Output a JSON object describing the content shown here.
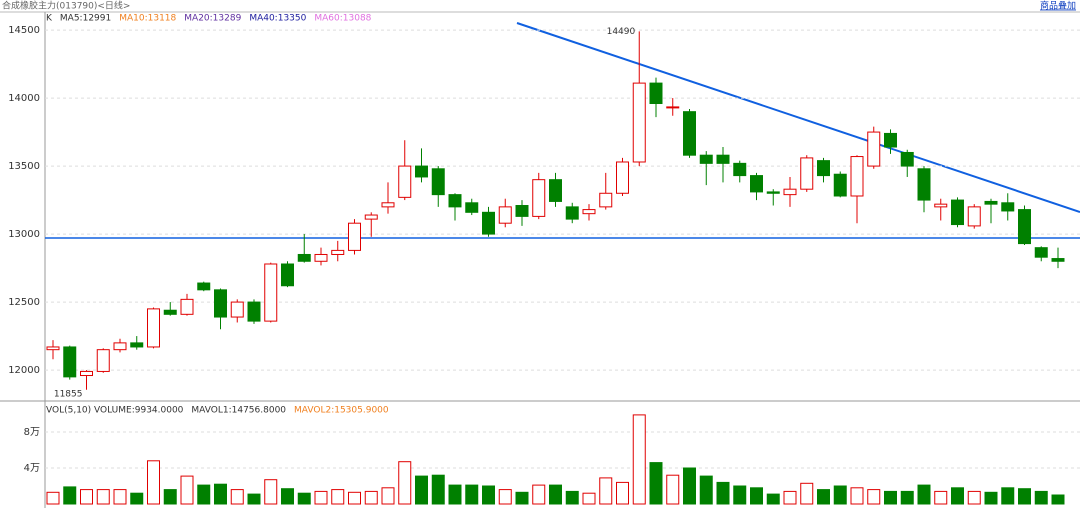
{
  "toolbar": {
    "title": "合成橡胶主力(013790)<日线>",
    "overlay_link": "商品叠加"
  },
  "chart_data": [
    {
      "type": "candlestick",
      "legend": [
        "K",
        "MA5:12991",
        "MA10:13118",
        "MA20:13289",
        "MA40:13350",
        "MA60:13088"
      ],
      "legend_colors": [
        "#333",
        "#333",
        "#f08020",
        "#6030a0",
        "#2020a0",
        "#e070e0"
      ],
      "annotations": [
        "14490",
        "11855"
      ],
      "up_color": "#e00000",
      "down_color": "#008000",
      "open": [
        12150,
        12170,
        11960,
        11990,
        12150,
        12200,
        12170,
        12440,
        12410,
        12640,
        12590,
        12390,
        12500,
        12360,
        12780,
        12850,
        12800,
        12850,
        12880,
        13110,
        13200,
        13270,
        13500,
        13480,
        13290,
        13230,
        13160,
        13080,
        13210,
        13130,
        13400,
        13200,
        13150,
        13200,
        13300,
        13530,
        14110,
        13930,
        13900,
        13580,
        13580,
        13520,
        13430,
        13310,
        13290,
        13330,
        13540,
        13440,
        13280,
        13500,
        13740,
        13600,
        13480,
        13200,
        13250,
        13060,
        13240,
        13230,
        13180,
        12900,
        12820
      ],
      "high": [
        12220,
        12180,
        12000,
        12160,
        12230,
        12250,
        12460,
        12500,
        12560,
        12650,
        12600,
        12520,
        12520,
        12790,
        12800,
        13000,
        12900,
        12950,
        13110,
        13160,
        13380,
        13690,
        13630,
        13500,
        13300,
        13260,
        13200,
        13260,
        13250,
        13450,
        13450,
        13230,
        13220,
        13450,
        13560,
        14490,
        14150,
        14000,
        13920,
        13610,
        13640,
        13540,
        13450,
        13330,
        13420,
        13580,
        13560,
        13460,
        13580,
        13790,
        13770,
        13620,
        13500,
        13260,
        13270,
        13220,
        13260,
        13300,
        13210,
        12910,
        12900
      ],
      "low": [
        12080,
        11930,
        11855,
        11980,
        12130,
        12150,
        12160,
        12400,
        12400,
        12580,
        12300,
        12350,
        12340,
        12350,
        12610,
        12790,
        12770,
        12800,
        12850,
        12980,
        13150,
        13250,
        13380,
        13200,
        13100,
        13140,
        12980,
        13050,
        13060,
        13110,
        13200,
        13080,
        13100,
        13180,
        13280,
        13500,
        13860,
        13870,
        13560,
        13360,
        13380,
        13380,
        13250,
        13210,
        13200,
        13310,
        13380,
        13270,
        13080,
        13480,
        13590,
        13420,
        13160,
        13100,
        13050,
        13040,
        13080,
        13100,
        12920,
        12800,
        12750
      ],
      "close": [
        12170,
        11950,
        11990,
        12150,
        12200,
        12170,
        12450,
        12410,
        12520,
        12590,
        12390,
        12500,
        12360,
        12780,
        12620,
        12800,
        12850,
        12880,
        13080,
        13140,
        13230,
        13500,
        13420,
        13290,
        13200,
        13160,
        13000,
        13200,
        13130,
        13400,
        13240,
        13110,
        13180,
        13300,
        13530,
        14110,
        13960,
        13935,
        13580,
        13520,
        13520,
        13430,
        13310,
        13300,
        13330,
        13560,
        13430,
        13280,
        13570,
        13750,
        13640,
        13500,
        13250,
        13220,
        13070,
        13200,
        13220,
        13170,
        12930,
        12830,
        12800
      ],
      "ylim": [
        11780,
        14574
      ],
      "yticks": [
        12000,
        12500,
        13000,
        13500,
        14000,
        14500
      ],
      "grid": true
    },
    {
      "type": "bar",
      "legend": [
        "VOL(5,10) VOLUME:9934.0000",
        "MAVOL1:14756.8000",
        "MAVOL2:15305.9000"
      ],
      "legend_colors": [
        "#333",
        "#333",
        "#f08020"
      ],
      "values": [
        1.3,
        1.9,
        1.6,
        1.6,
        1.6,
        1.2,
        4.8,
        1.6,
        3.1,
        2.1,
        2.2,
        1.6,
        1.1,
        2.7,
        1.7,
        1.2,
        1.4,
        1.6,
        1.3,
        1.4,
        1.8,
        4.7,
        3.1,
        3.2,
        2.1,
        2.1,
        2.0,
        1.6,
        1.3,
        2.1,
        2.1,
        1.4,
        1.2,
        2.9,
        2.4,
        9.9,
        4.6,
        3.2,
        4.0,
        3.1,
        2.4,
        2.0,
        1.8,
        1.1,
        1.4,
        2.3,
        1.6,
        2.0,
        1.8,
        1.6,
        1.4,
        1.4,
        2.1,
        1.4,
        1.8,
        1.4,
        1.3,
        1.8,
        1.7,
        1.4,
        1.0
      ],
      "ylim": [
        0,
        11
      ],
      "yticks": [
        {
          "value": 4,
          "label": "4万"
        },
        {
          "value": 8,
          "label": "8万"
        }
      ],
      "grid": true
    }
  ]
}
